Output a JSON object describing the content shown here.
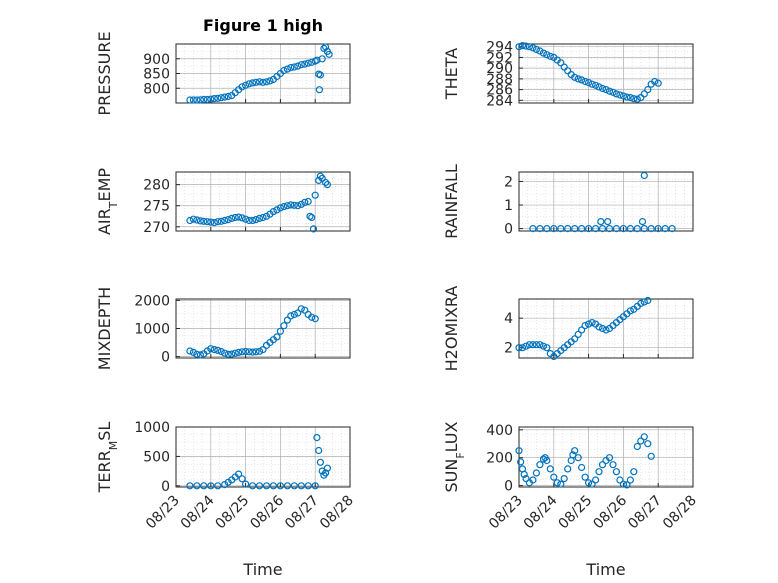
{
  "figure": {
    "title": "Figure 1 high"
  },
  "colors": {
    "marker": "#0072BD",
    "axis": "#262626",
    "grid": "#b0b0b0"
  },
  "x_ticks": [
    "08/23",
    "08/24",
    "08/25",
    "08/26",
    "08/27",
    "08/28"
  ],
  "x_label": "Time",
  "chart_data": [
    {
      "type": "scatter",
      "title": "Figure 1 high",
      "ylabel": "PRESSURE",
      "yticks": [
        800,
        850,
        900
      ],
      "ylim": [
        750,
        950
      ],
      "xlim": [
        0,
        5
      ],
      "points": [
        [
          0.4,
          760
        ],
        [
          0.5,
          760
        ],
        [
          0.6,
          760
        ],
        [
          0.7,
          761
        ],
        [
          0.8,
          762
        ],
        [
          0.9,
          762
        ],
        [
          1.0,
          763
        ],
        [
          1.1,
          765
        ],
        [
          1.2,
          766
        ],
        [
          1.3,
          768
        ],
        [
          1.4,
          770
        ],
        [
          1.5,
          772
        ],
        [
          1.6,
          775
        ],
        [
          1.7,
          785
        ],
        [
          1.8,
          795
        ],
        [
          1.9,
          805
        ],
        [
          2.0,
          810
        ],
        [
          2.1,
          815
        ],
        [
          2.2,
          818
        ],
        [
          2.3,
          820
        ],
        [
          2.4,
          822
        ],
        [
          2.5,
          820
        ],
        [
          2.6,
          822
        ],
        [
          2.7,
          825
        ],
        [
          2.8,
          830
        ],
        [
          2.9,
          840
        ],
        [
          3.0,
          850
        ],
        [
          3.1,
          860
        ],
        [
          3.2,
          865
        ],
        [
          3.3,
          870
        ],
        [
          3.4,
          872
        ],
        [
          3.5,
          875
        ],
        [
          3.6,
          880
        ],
        [
          3.7,
          882
        ],
        [
          3.8,
          885
        ],
        [
          3.9,
          888
        ],
        [
          4.0,
          892
        ],
        [
          4.05,
          895
        ],
        [
          4.1,
          848
        ],
        [
          4.15,
          845
        ],
        [
          4.12,
          795
        ],
        [
          4.2,
          900
        ],
        [
          4.25,
          935
        ],
        [
          4.3,
          940
        ],
        [
          4.35,
          925
        ],
        [
          4.4,
          915
        ]
      ]
    },
    {
      "type": "scatter",
      "ylabel": "THETA",
      "yticks": [
        284,
        286,
        288,
        290,
        292,
        294
      ],
      "ylim": [
        283.5,
        294.5
      ],
      "xlim": [
        0,
        5
      ],
      "points": [
        [
          0.0,
          294
        ],
        [
          0.1,
          294.2
        ],
        [
          0.2,
          294.1
        ],
        [
          0.3,
          294
        ],
        [
          0.4,
          293.8
        ],
        [
          0.5,
          293.5
        ],
        [
          0.6,
          293.2
        ],
        [
          0.7,
          292.8
        ],
        [
          0.8,
          292.5
        ],
        [
          0.9,
          292.2
        ],
        [
          1.0,
          292
        ],
        [
          1.1,
          291.5
        ],
        [
          1.2,
          291
        ],
        [
          1.3,
          290.2
        ],
        [
          1.4,
          289.5
        ],
        [
          1.5,
          288.8
        ],
        [
          1.6,
          288.3
        ],
        [
          1.7,
          288
        ],
        [
          1.8,
          287.8
        ],
        [
          1.9,
          287.5
        ],
        [
          2.0,
          287.3
        ],
        [
          2.1,
          287
        ],
        [
          2.2,
          286.8
        ],
        [
          2.3,
          286.5
        ],
        [
          2.4,
          286.2
        ],
        [
          2.5,
          286
        ],
        [
          2.6,
          285.7
        ],
        [
          2.7,
          285.5
        ],
        [
          2.8,
          285.2
        ],
        [
          2.9,
          285
        ],
        [
          3.0,
          284.8
        ],
        [
          3.1,
          284.6
        ],
        [
          3.2,
          284.5
        ],
        [
          3.3,
          284.3
        ],
        [
          3.4,
          284.2
        ],
        [
          3.5,
          284.5
        ],
        [
          3.6,
          285.2
        ],
        [
          3.7,
          286
        ],
        [
          3.8,
          287
        ],
        [
          3.9,
          287.5
        ],
        [
          4.0,
          287.2
        ]
      ]
    },
    {
      "type": "scatter",
      "ylabel": "AIR_TEMP",
      "yticks": [
        270,
        275,
        280
      ],
      "ylim": [
        269,
        283
      ],
      "xlim": [
        0,
        5
      ],
      "points": [
        [
          0.4,
          271.5
        ],
        [
          0.5,
          271.8
        ],
        [
          0.6,
          271.6
        ],
        [
          0.7,
          271.4
        ],
        [
          0.8,
          271.3
        ],
        [
          0.9,
          271.2
        ],
        [
          1.0,
          271.1
        ],
        [
          1.1,
          271
        ],
        [
          1.2,
          271.2
        ],
        [
          1.3,
          271.3
        ],
        [
          1.4,
          271.5
        ],
        [
          1.5,
          271.7
        ],
        [
          1.6,
          272
        ],
        [
          1.7,
          272.2
        ],
        [
          1.8,
          272.3
        ],
        [
          1.9,
          272.1
        ],
        [
          2.0,
          271.8
        ],
        [
          2.1,
          271.5
        ],
        [
          2.2,
          271.5
        ],
        [
          2.3,
          271.7
        ],
        [
          2.4,
          272
        ],
        [
          2.5,
          272.2
        ],
        [
          2.6,
          272.5
        ],
        [
          2.7,
          273
        ],
        [
          2.8,
          273.6
        ],
        [
          2.9,
          274
        ],
        [
          3.0,
          274.5
        ],
        [
          3.1,
          274.8
        ],
        [
          3.2,
          275
        ],
        [
          3.3,
          275.2
        ],
        [
          3.4,
          275.1
        ],
        [
          3.5,
          275
        ],
        [
          3.6,
          275.3
        ],
        [
          3.7,
          275.8
        ],
        [
          3.8,
          276
        ],
        [
          3.85,
          272.5
        ],
        [
          3.9,
          272.2
        ],
        [
          3.95,
          269.5
        ],
        [
          4.0,
          277.5
        ],
        [
          4.1,
          281
        ],
        [
          4.15,
          282
        ],
        [
          4.2,
          281.5
        ],
        [
          4.3,
          280.5
        ],
        [
          4.35,
          280
        ]
      ]
    },
    {
      "type": "scatter",
      "ylabel": "RAINFALL",
      "yticks": [
        0,
        1,
        2
      ],
      "ylim": [
        -0.1,
        2.4
      ],
      "xlim": [
        0,
        5
      ],
      "points": [
        [
          0.4,
          0
        ],
        [
          0.6,
          0
        ],
        [
          0.8,
          0
        ],
        [
          1.0,
          0
        ],
        [
          1.2,
          0
        ],
        [
          1.4,
          0
        ],
        [
          1.6,
          0
        ],
        [
          1.8,
          0
        ],
        [
          2.0,
          0
        ],
        [
          2.2,
          0
        ],
        [
          2.4,
          0
        ],
        [
          2.6,
          0
        ],
        [
          2.8,
          0
        ],
        [
          3.0,
          0
        ],
        [
          3.2,
          0
        ],
        [
          3.4,
          0
        ],
        [
          3.6,
          0
        ],
        [
          3.8,
          0
        ],
        [
          4.0,
          0
        ],
        [
          4.2,
          0
        ],
        [
          4.4,
          0
        ],
        [
          2.35,
          0.3
        ],
        [
          2.55,
          0.3
        ],
        [
          3.55,
          0.3
        ],
        [
          3.6,
          2.25
        ]
      ]
    },
    {
      "type": "scatter",
      "ylabel": "MIXDEPTH",
      "yticks": [
        0,
        1000,
        2000
      ],
      "ylim": [
        -50,
        2050
      ],
      "xlim": [
        0,
        5
      ],
      "points": [
        [
          0.4,
          200
        ],
        [
          0.5,
          150
        ],
        [
          0.6,
          80
        ],
        [
          0.7,
          60
        ],
        [
          0.8,
          100
        ],
        [
          0.9,
          200
        ],
        [
          1.0,
          280
        ],
        [
          1.1,
          250
        ],
        [
          1.2,
          220
        ],
        [
          1.3,
          180
        ],
        [
          1.4,
          120
        ],
        [
          1.5,
          80
        ],
        [
          1.6,
          90
        ],
        [
          1.7,
          120
        ],
        [
          1.8,
          150
        ],
        [
          1.9,
          170
        ],
        [
          2.0,
          180
        ],
        [
          2.1,
          170
        ],
        [
          2.2,
          160
        ],
        [
          2.3,
          170
        ],
        [
          2.4,
          190
        ],
        [
          2.5,
          250
        ],
        [
          2.6,
          400
        ],
        [
          2.7,
          500
        ],
        [
          2.8,
          600
        ],
        [
          2.9,
          700
        ],
        [
          3.0,
          900
        ],
        [
          3.1,
          1100
        ],
        [
          3.2,
          1300
        ],
        [
          3.3,
          1450
        ],
        [
          3.4,
          1500
        ],
        [
          3.5,
          1550
        ],
        [
          3.6,
          1700
        ],
        [
          3.7,
          1650
        ],
        [
          3.8,
          1500
        ],
        [
          3.9,
          1400
        ],
        [
          4.0,
          1350
        ]
      ]
    },
    {
      "type": "scatter",
      "ylabel": "H2OMIXRA",
      "yticks": [
        2,
        4
      ],
      "ylim": [
        1.3,
        5.3
      ],
      "xlim": [
        0,
        5
      ],
      "points": [
        [
          0.0,
          2
        ],
        [
          0.1,
          2
        ],
        [
          0.2,
          2.1
        ],
        [
          0.3,
          2.2
        ],
        [
          0.4,
          2.2
        ],
        [
          0.5,
          2.2
        ],
        [
          0.6,
          2.2
        ],
        [
          0.7,
          2.1
        ],
        [
          0.8,
          2
        ],
        [
          0.9,
          1.6
        ],
        [
          1.0,
          1.4
        ],
        [
          1.1,
          1.6
        ],
        [
          1.2,
          1.8
        ],
        [
          1.3,
          2
        ],
        [
          1.4,
          2.2
        ],
        [
          1.5,
          2.4
        ],
        [
          1.6,
          2.6
        ],
        [
          1.7,
          2.9
        ],
        [
          1.8,
          3.2
        ],
        [
          1.9,
          3.5
        ],
        [
          2.0,
          3.6
        ],
        [
          2.1,
          3.7
        ],
        [
          2.2,
          3.6
        ],
        [
          2.3,
          3.4
        ],
        [
          2.4,
          3.3
        ],
        [
          2.5,
          3.2
        ],
        [
          2.6,
          3.3
        ],
        [
          2.7,
          3.5
        ],
        [
          2.8,
          3.7
        ],
        [
          2.9,
          3.9
        ],
        [
          3.0,
          4.1
        ],
        [
          3.1,
          4.3
        ],
        [
          3.2,
          4.5
        ],
        [
          3.3,
          4.6
        ],
        [
          3.4,
          4.8
        ],
        [
          3.5,
          5
        ],
        [
          3.6,
          5.1
        ],
        [
          3.7,
          5.2
        ]
      ]
    },
    {
      "type": "scatter",
      "ylabel": "TERR_MSL",
      "yticks": [
        0,
        500,
        1000
      ],
      "ylim": [
        -20,
        1000
      ],
      "xlim": [
        0,
        5
      ],
      "points": [
        [
          0.4,
          0
        ],
        [
          0.6,
          0
        ],
        [
          0.8,
          0
        ],
        [
          1.0,
          0
        ],
        [
          1.2,
          0
        ],
        [
          1.4,
          20
        ],
        [
          1.5,
          60
        ],
        [
          1.6,
          100
        ],
        [
          1.7,
          150
        ],
        [
          1.8,
          200
        ],
        [
          1.9,
          120
        ],
        [
          2.0,
          30
        ],
        [
          2.2,
          0
        ],
        [
          2.4,
          0
        ],
        [
          2.6,
          0
        ],
        [
          2.8,
          0
        ],
        [
          3.0,
          0
        ],
        [
          3.2,
          0
        ],
        [
          3.4,
          0
        ],
        [
          3.6,
          0
        ],
        [
          3.8,
          0
        ],
        [
          4.0,
          0
        ],
        [
          4.05,
          820
        ],
        [
          4.1,
          600
        ],
        [
          4.15,
          400
        ],
        [
          4.2,
          250
        ],
        [
          4.25,
          180
        ],
        [
          4.3,
          220
        ],
        [
          4.35,
          300
        ]
      ]
    },
    {
      "type": "scatter",
      "ylabel": "SUN_FLUX",
      "yticks": [
        0,
        200,
        400
      ],
      "ylim": [
        -10,
        420
      ],
      "xlim": [
        0,
        5
      ],
      "points": [
        [
          0.0,
          250
        ],
        [
          0.05,
          170
        ],
        [
          0.1,
          120
        ],
        [
          0.15,
          80
        ],
        [
          0.2,
          50
        ],
        [
          0.3,
          20
        ],
        [
          0.4,
          40
        ],
        [
          0.5,
          90
        ],
        [
          0.6,
          150
        ],
        [
          0.7,
          190
        ],
        [
          0.75,
          200
        ],
        [
          0.8,
          180
        ],
        [
          0.9,
          120
        ],
        [
          1.0,
          60
        ],
        [
          1.1,
          20
        ],
        [
          1.2,
          10
        ],
        [
          1.3,
          50
        ],
        [
          1.4,
          120
        ],
        [
          1.5,
          180
        ],
        [
          1.55,
          220
        ],
        [
          1.6,
          250
        ],
        [
          1.7,
          200
        ],
        [
          1.8,
          130
        ],
        [
          1.9,
          60
        ],
        [
          2.0,
          20
        ],
        [
          2.1,
          10
        ],
        [
          2.2,
          40
        ],
        [
          2.3,
          100
        ],
        [
          2.4,
          150
        ],
        [
          2.5,
          180
        ],
        [
          2.6,
          200
        ],
        [
          2.7,
          150
        ],
        [
          2.8,
          100
        ],
        [
          2.9,
          40
        ],
        [
          3.0,
          10
        ],
        [
          3.1,
          5
        ],
        [
          3.2,
          40
        ],
        [
          3.3,
          100
        ],
        [
          3.4,
          280
        ],
        [
          3.5,
          320
        ],
        [
          3.6,
          350
        ],
        [
          3.7,
          300
        ],
        [
          3.8,
          210
        ]
      ]
    }
  ]
}
